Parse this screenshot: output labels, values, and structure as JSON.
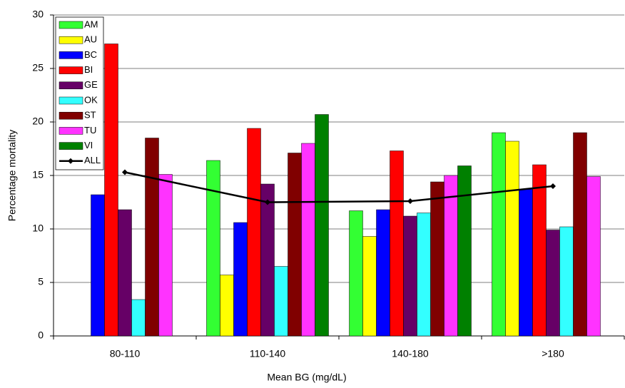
{
  "chart_data": {
    "type": "bar",
    "x_label": "Mean BG (mg/dL)",
    "y_label": "Percentage mortality",
    "categories": [
      "80-110",
      "110-140",
      "140-180",
      ">180"
    ],
    "series": [
      {
        "name": "AM",
        "color": "#33ff33",
        "values": [
          null,
          16.4,
          11.7,
          19.0
        ]
      },
      {
        "name": "AU",
        "color": "#ffff00",
        "values": [
          null,
          5.7,
          9.3,
          18.2
        ]
      },
      {
        "name": "BC",
        "color": "#0000ff",
        "values": [
          13.2,
          10.6,
          11.8,
          13.7
        ]
      },
      {
        "name": "BI",
        "color": "#ff0000",
        "values": [
          27.3,
          19.4,
          17.3,
          16.0
        ]
      },
      {
        "name": "GE",
        "color": "#660066",
        "values": [
          11.8,
          14.2,
          11.2,
          9.9
        ]
      },
      {
        "name": "OK",
        "color": "#33ffff",
        "values": [
          3.4,
          6.5,
          11.5,
          10.2
        ]
      },
      {
        "name": "ST",
        "color": "#800000",
        "values": [
          18.5,
          17.1,
          14.4,
          19.0
        ]
      },
      {
        "name": "TU",
        "color": "#ff33ff",
        "values": [
          15.1,
          18.0,
          15.0,
          14.9
        ]
      },
      {
        "name": "VI",
        "color": "#008000",
        "values": [
          null,
          20.7,
          15.9,
          null
        ]
      },
      {
        "name": "ALL",
        "color": "#000000",
        "type": "line",
        "values": [
          15.3,
          12.5,
          12.6,
          14.0
        ]
      }
    ],
    "ylim": [
      0,
      30
    ],
    "yticks": [
      0,
      5,
      10,
      15,
      20,
      25,
      30
    ],
    "grid": true,
    "legend": "top-left"
  }
}
